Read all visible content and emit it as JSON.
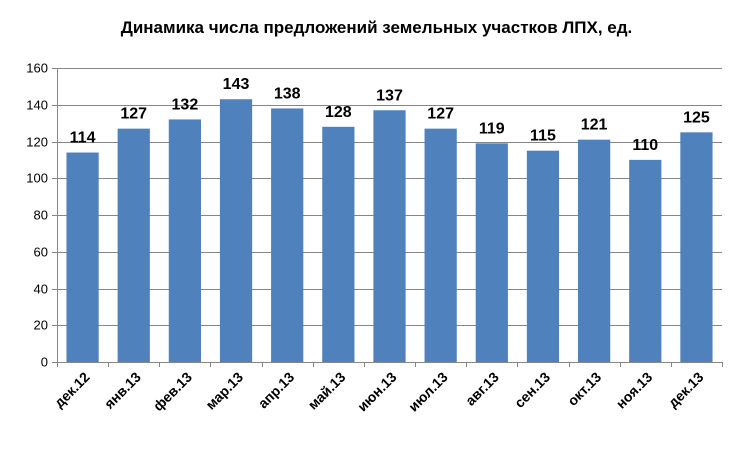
{
  "chart_data": {
    "type": "bar",
    "title": "Динамика числа предложений земельных участков ЛПХ, ед.",
    "xlabel": "",
    "ylabel": "",
    "categories": [
      "дек.12",
      "янв.13",
      "фев.13",
      "мар.13",
      "апр.13",
      "май.13",
      "июн.13",
      "июл.13",
      "авг.13",
      "сен.13",
      "окт.13",
      "ноя.13",
      "дек.13"
    ],
    "values": [
      114,
      127,
      132,
      143,
      138,
      128,
      137,
      127,
      119,
      115,
      121,
      110,
      125
    ],
    "ylim": [
      0,
      160
    ],
    "yticks": [
      0,
      20,
      40,
      60,
      80,
      100,
      120,
      140,
      160
    ],
    "grid": true,
    "legend": "none",
    "bar_color": "#4F81BD"
  }
}
